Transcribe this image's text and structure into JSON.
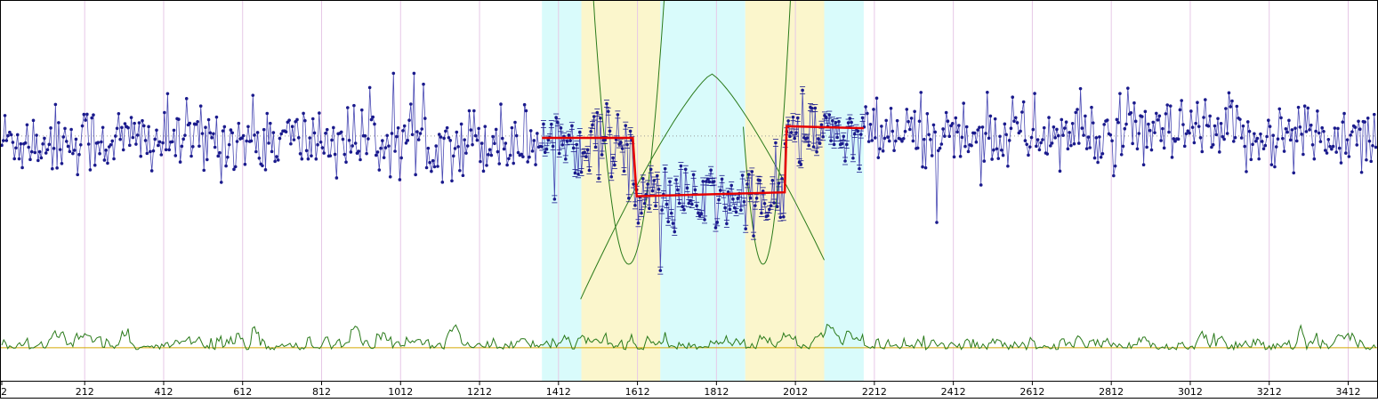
{
  "chart_data": {
    "type": "line",
    "title": "",
    "xlabel": "",
    "ylabel": "",
    "xlim": [
      2,
      3483
    ],
    "x_tick_labels": [
      "2",
      "212",
      "412",
      "612",
      "812",
      "1012",
      "1212",
      "1412",
      "1612",
      "1812",
      "2012",
      "2212",
      "2412",
      "2612",
      "2812",
      "3012",
      "3212",
      "3412"
    ],
    "x_ticks": [
      2,
      212,
      412,
      612,
      812,
      1012,
      1212,
      1412,
      1612,
      1812,
      2012,
      2212,
      2412,
      2612,
      2812,
      3012,
      3212,
      3412
    ],
    "grid": true,
    "regions": [
      {
        "x0": 1370,
        "x1": 1470,
        "color": "#d9fbfb"
      },
      {
        "x0": 1470,
        "x1": 1670,
        "color": "#fbf6cc"
      },
      {
        "x0": 1670,
        "x1": 1885,
        "color": "#d9fbfb"
      },
      {
        "x0": 1885,
        "x1": 2085,
        "color": "#fbf6cc"
      },
      {
        "x0": 2085,
        "x1": 2185,
        "color": "#d9fbfb"
      }
    ],
    "colors": {
      "series": "#1a1a8c",
      "fit": "#e60000",
      "envelope": "#2a7a1a",
      "baseline": "#d4a800",
      "grid": "#e6c8e6",
      "dotted_ref": "#999999"
    },
    "series": [
      {
        "kind": "noisy_signal",
        "segments": [
          {
            "x0": 2,
            "x1": 1600,
            "level": 0.0
          },
          {
            "x0": 1600,
            "x1": 1985,
            "level": -1.55
          },
          {
            "x0": 1985,
            "x1": 3483,
            "level": 0.12
          }
        ],
        "sigma": 0.45
      },
      {
        "kind": "step_fit",
        "points": [
          [
            1370,
            0.05
          ],
          [
            1600,
            0.05
          ],
          [
            1610,
            -1.45
          ],
          [
            1985,
            -1.35
          ],
          [
            1990,
            0.35
          ],
          [
            2185,
            0.3
          ]
        ]
      },
      {
        "kind": "inverted_v",
        "points": [
          [
            1468,
            -4.1
          ],
          [
            1800,
            1.7
          ],
          [
            2085,
            -4.1
          ]
        ]
      },
      {
        "kind": "parabola_left",
        "points": [
          [
            1490,
            5.0
          ],
          [
            1590,
            -3.2
          ],
          [
            1640,
            0.0
          ],
          [
            1690,
            5.0
          ]
        ]
      },
      {
        "kind": "parabola_right",
        "points": [
          [
            1880,
            5.0
          ],
          [
            1930,
            -3.2
          ],
          [
            1980,
            0.0
          ],
          [
            2035,
            5.0
          ]
        ]
      }
    ],
    "baseline_value": -5.35,
    "ylim": [
      -6.2,
      3.6
    ]
  }
}
